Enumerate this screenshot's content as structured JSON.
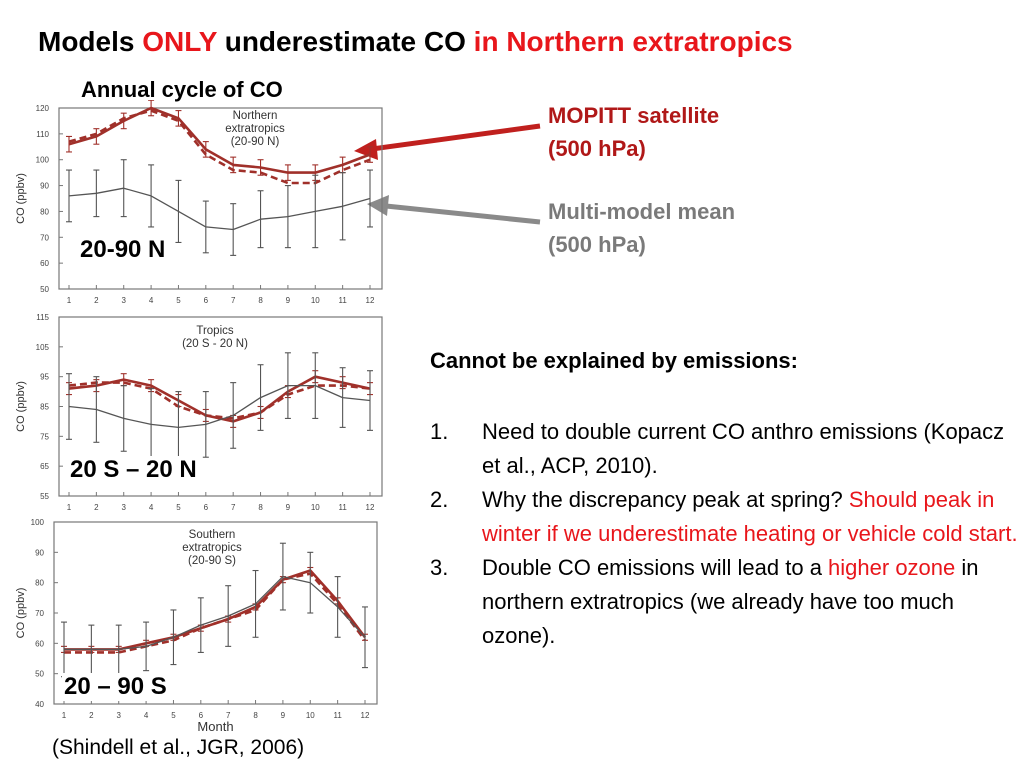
{
  "title": {
    "part1": "Models ",
    "part2": "ONLY",
    "part3": " underestimate CO ",
    "part4": "in Northern extratropics"
  },
  "subtitle": "Annual cycle of CO",
  "legend": {
    "mopitt_line1": "MOPITT satellite",
    "mopitt_line2": "(500 hPa)",
    "model_line1": "Multi-model mean",
    "model_line2": "(500 hPa)"
  },
  "colors": {
    "title_accent": "#e8161b",
    "mopitt": "#a0302a",
    "mopitt_label": "#b01818",
    "model": "#555555",
    "model_label": "#7a7a7a"
  },
  "regions": [
    "20-90 N",
    "20 S – 20 N",
    "20 – 90 S"
  ],
  "citation": "(Shindell et al., JGR, 2006)",
  "emissions": {
    "heading": "Cannot be explained by emissions:",
    "items": [
      {
        "num": "1.",
        "text": "Need to double current CO anthro emissions (Kopacz et al., ACP, 2010)."
      },
      {
        "num": "2.",
        "text": "Why the discrepancy peak at spring? ",
        "red": "Should peak in winter if we underestimate heating or vehicle cold start."
      },
      {
        "num": "3.",
        "text": "Double CO emissions will lead to a ",
        "red": "higher ozone",
        "tail": " in northern extratropics (we already have too much ozone)."
      }
    ]
  },
  "chart_data": [
    {
      "type": "line",
      "title": "Northern extratropics (20-90 N)",
      "xlabel": "",
      "ylabel": "CO (ppbv)",
      "x": [
        1,
        2,
        3,
        4,
        5,
        6,
        7,
        8,
        9,
        10,
        11,
        12
      ],
      "ylim": [
        50,
        120
      ],
      "yticks": [
        50,
        60,
        70,
        80,
        90,
        100,
        110,
        120
      ],
      "series": [
        {
          "name": "MOPITT",
          "style": "solid",
          "values": [
            106,
            109,
            115,
            120,
            116,
            104,
            98,
            97,
            95,
            95,
            98,
            102
          ],
          "err": [
            3,
            3,
            3,
            3,
            3,
            3,
            3,
            3,
            3,
            3,
            3,
            3
          ]
        },
        {
          "name": "MOPITT",
          "style": "dashed",
          "values": [
            107,
            110,
            116,
            119,
            115,
            102,
            96,
            95,
            91,
            91,
            96,
            100
          ]
        },
        {
          "name": "Multi-model mean",
          "style": "solid",
          "values": [
            86,
            87,
            89,
            86,
            80,
            74,
            73,
            77,
            78,
            80,
            82,
            85
          ],
          "err": [
            10,
            9,
            11,
            12,
            12,
            10,
            10,
            11,
            12,
            14,
            13,
            11
          ]
        }
      ]
    },
    {
      "type": "line",
      "title": "Tropics (20 S - 20 N)",
      "xlabel": "",
      "ylabel": "CO (ppbv)",
      "x": [
        1,
        2,
        3,
        4,
        5,
        6,
        7,
        8,
        9,
        10,
        11,
        12
      ],
      "ylim": [
        55,
        115
      ],
      "yticks": [
        55,
        65,
        75,
        85,
        95,
        105,
        115
      ],
      "series": [
        {
          "name": "MOPITT",
          "style": "solid",
          "values": [
            91,
            92,
            94,
            92,
            87,
            82,
            80,
            83,
            90,
            95,
            93,
            91
          ],
          "err": [
            2,
            2,
            2,
            2,
            2,
            2,
            2,
            2,
            2,
            2,
            2,
            2
          ]
        },
        {
          "name": "MOPITT",
          "style": "dashed",
          "values": [
            92,
            93,
            93,
            91,
            85,
            82,
            81,
            83,
            89,
            92,
            92,
            91
          ]
        },
        {
          "name": "Multi-model mean",
          "style": "solid",
          "values": [
            85,
            84,
            81,
            79,
            78,
            79,
            82,
            88,
            92,
            92,
            88,
            87
          ],
          "err": [
            11,
            11,
            11,
            12,
            12,
            11,
            11,
            11,
            11,
            11,
            10,
            10
          ]
        }
      ]
    },
    {
      "type": "line",
      "title": "Southern extratropics (20-90 S)",
      "xlabel": "Month",
      "ylabel": "CO (ppbv)",
      "x": [
        1,
        2,
        3,
        4,
        5,
        6,
        7,
        8,
        9,
        10,
        11,
        12
      ],
      "ylim": [
        40,
        100
      ],
      "yticks": [
        40,
        50,
        60,
        70,
        80,
        90,
        100
      ],
      "series": [
        {
          "name": "MOPITT",
          "style": "solid",
          "values": [
            58,
            58,
            58,
            60,
            62,
            65,
            68,
            72,
            81,
            84,
            74,
            62
          ],
          "err": [
            1,
            1,
            1,
            1,
            1,
            1,
            1,
            1,
            1,
            1,
            1,
            1
          ]
        },
        {
          "name": "MOPITT",
          "style": "dashed",
          "values": [
            57,
            57,
            57,
            59,
            61,
            65,
            68,
            71,
            81,
            83,
            73,
            61
          ]
        },
        {
          "name": "Multi-model mean",
          "style": "solid",
          "values": [
            58,
            58,
            58,
            59,
            62,
            66,
            69,
            73,
            82,
            80,
            72,
            62
          ],
          "err": [
            9,
            8,
            8,
            8,
            9,
            9,
            10,
            11,
            11,
            10,
            10,
            10
          ]
        }
      ]
    }
  ]
}
